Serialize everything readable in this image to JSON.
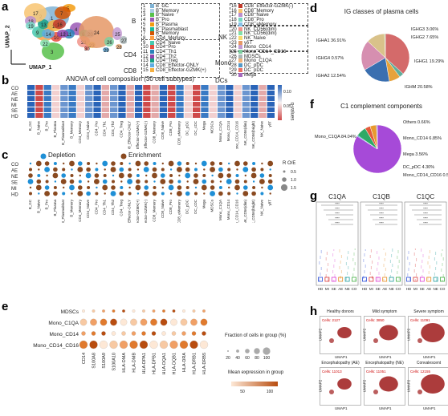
{
  "labels": {
    "a": "a",
    "b": "b",
    "c": "c",
    "d": "d",
    "e": "e",
    "f": "f",
    "g": "g",
    "h": "h"
  },
  "panel_a": {
    "xlabel": "UMAP_1",
    "ylabel": "UMAP_2",
    "groups": {
      "b": "B",
      "nk": "NK",
      "cd4": "CD4",
      "mono": "Mono",
      "dcs": "DCs",
      "cd8": "CD8"
    },
    "clusters": [
      {
        "n": "1",
        "name": "B_GC",
        "color": "#7fb3d5"
      },
      {
        "n": "2",
        "name": "B_Memory",
        "color": "#a9cce3"
      },
      {
        "n": "3",
        "name": "B_Naive",
        "color": "#58c14b"
      },
      {
        "n": "4",
        "name": "B_Pro",
        "color": "#9b59b6"
      },
      {
        "n": "5",
        "name": "B_Plasma",
        "color": "#f39c12"
      },
      {
        "n": "6",
        "name": "B_Plasmablast",
        "color": "#1abc9c"
      },
      {
        "n": "7",
        "name": "B_Memory",
        "color": "#d35400"
      },
      {
        "n": "8",
        "name": "CD4_Memory",
        "color": "#ff9f43"
      },
      {
        "n": "9",
        "name": "CD4_Naive",
        "color": "#48c9b0"
      },
      {
        "n": "10",
        "name": "CD4_Pro",
        "color": "#e74c3c"
      },
      {
        "n": "11",
        "name": "CD4_Th1",
        "color": "#2980b9"
      },
      {
        "n": "12",
        "name": "CD4_Th2",
        "color": "#8e44ad"
      },
      {
        "n": "13",
        "name": "CD4_Treg",
        "color": "#16a085"
      },
      {
        "n": "14",
        "name": "CD8_Effector-ONLY",
        "color": "#5dade2"
      },
      {
        "n": "15",
        "name": "CD8_Effector-GZMK(+)",
        "color": "#f5b041"
      },
      {
        "n": "16",
        "name": "CD8_Effector-GZMK(-)",
        "color": "#c0392b"
      },
      {
        "n": "16",
        "name": "CD8_Memory",
        "color": "#f8c471"
      },
      {
        "n": "17",
        "name": "CD8_Naive",
        "color": "#bb8fce"
      },
      {
        "n": "18",
        "name": "CD8_Pro",
        "color": "#76d7c4"
      },
      {
        "n": "19",
        "name": "CD8_eMemory",
        "color": "#85c1e9"
      },
      {
        "n": "20",
        "name": "NK_CD56(dim)",
        "color": "#f1948a"
      },
      {
        "n": "21",
        "name": "NK_CD56(dim)",
        "color": "#82e0aa"
      },
      {
        "n": "22",
        "name": "NK_Naive",
        "color": "#f7dc6f"
      },
      {
        "n": "23",
        "name": "γδT",
        "color": "#e59866"
      },
      {
        "n": "24",
        "name": "Mono_CD14",
        "color": "#c39bd3"
      },
      {
        "n": "25",
        "name": "Mono_CD14_CD16",
        "color": "#7dcea0"
      },
      {
        "n": "26",
        "name": "MDSCs",
        "color": "#aab7b8"
      },
      {
        "n": "27",
        "name": "Mono_C1QA",
        "color": "#f0b27a"
      },
      {
        "n": "28",
        "name": "DC_pDC",
        "color": "#5499c7"
      },
      {
        "n": "29",
        "name": "DC_pDC",
        "color": "#ec7063"
      },
      {
        "n": "30",
        "name": "Mega",
        "color": "#a569bd"
      }
    ]
  },
  "panel_b": {
    "title": "ANOVA of cell composition (30 cell subtypes)",
    "rows": [
      "CO",
      "AE",
      "NE",
      "MI",
      "SE",
      "HD"
    ],
    "columns": [
      "B_GC",
      "B_Naive",
      "B_Pro",
      "B_Plasma",
      "B_Plasmablast",
      "B_Memory",
      "CD4_Memory",
      "CD4_Naive",
      "CD4_Pro",
      "CD4_Th1",
      "CD4_Th2",
      "CD4_Treg",
      "CD8_Effector-ONLY",
      "CD8_Effector-GZMK(+)",
      "CD8_Effector-GZMK(-)",
      "CD8_Memory",
      "CD8_Naive",
      "CD8_Pro",
      "CD8_eMemory",
      "DC_pDC",
      "DC_cDC",
      "Mega",
      "MDSCs",
      "Mono_C1QA",
      "Mono_CD14",
      "Mono_CD14_CD16",
      "NK_CD56(dim)",
      "NK_CD56(bright)",
      "NK_Naive",
      "γδT"
    ],
    "legend_title": "q-values",
    "legend_ticks": [
      "0.05",
      "0.10"
    ]
  },
  "panel_c": {
    "depletion": "Depletion",
    "enrichment": "Enrichment",
    "rows": [
      "CO",
      "AE",
      "NE",
      "SE",
      "MI",
      "HD"
    ],
    "size_title": "R O/E",
    "size_ticks": [
      "0.5",
      "1.0",
      "1.5"
    ]
  },
  "panel_d": {
    "title": "IG classes of plasma cells",
    "chart_data": {
      "type": "pie",
      "labels": [
        "IGHA1",
        "IGHG3",
        "IGHG2",
        "IGHG1",
        "IGHM",
        "IGHA2",
        "IGHG4"
      ],
      "values": [
        36.91,
        3.06,
        7.65,
        19.29,
        20.58,
        12.54,
        0.57
      ],
      "colors": [
        "#d46a6a",
        "#5fae9c",
        "#e6a23c",
        "#3a6fb0",
        "#d68fb0",
        "#d9c28a",
        "#8fbf6a"
      ]
    },
    "slice_labels": [
      "IGHA1 36.91%",
      "IGHG3 3.06%",
      "IGHG2 7.65%",
      "IGHG1 19.29%",
      "IGHM 20.58%",
      "IGHA2 12.54%",
      "IGHG4 0.57%"
    ]
  },
  "panel_e": {
    "rows": [
      "MDSCs",
      "Mono_C1QA",
      "Mono_CD14",
      "Mono_CD14_CD16"
    ],
    "genes": [
      "CD14",
      "S100A8",
      "S100A9",
      "S100A10",
      "HLA-DMA",
      "HLA-DMB",
      "HLA-DPA1",
      "HLA-DPB1",
      "HLA-DQA1",
      "HLA-DQB1",
      "HLA-DRA",
      "HLA-DRB1",
      "HLA-DRB5"
    ],
    "size_title": "Fraction of cells in group (%)",
    "size_ticks": [
      "20",
      "40",
      "60",
      "80",
      "100"
    ],
    "color_title": "Mean expression in group",
    "color_ticks": [
      "50",
      "100"
    ]
  },
  "panel_f": {
    "title": "C1 complement components",
    "chart_data": {
      "type": "pie",
      "labels": [
        "Mono_C1QA",
        "Others",
        "Mono_CD14",
        "Mega",
        "DC_pDC",
        "Mono_CD14_CD16"
      ],
      "values": [
        84.04,
        0.66,
        6.85,
        3.56,
        4.3,
        0.59
      ],
      "colors": [
        "#a64ad8",
        "#3a8fd6",
        "#2eaa66",
        "#e25a3a",
        "#e89a2e",
        "#5f6bd0"
      ]
    },
    "slice_labels": [
      "Mono_C1QA 84.04%",
      "Others 0.66%",
      "Mono_CD14 6.85%",
      "Mega 3.56%",
      "DC_pDC 4.30%",
      "Mono_CD14_CD16 0.59%"
    ]
  },
  "panel_g": {
    "panels": [
      {
        "title": "C1QA"
      },
      {
        "title": "C1QB"
      },
      {
        "title": "C1QC"
      }
    ],
    "groups": [
      "HD",
      "MI",
      "SE",
      "AE",
      "NE",
      "CO"
    ],
    "group_colors": [
      "#2a4dd8",
      "#d93a3a",
      "#d93ad1",
      "#e58a1f",
      "#1f9c9c",
      "#3fae3f"
    ],
    "sig": "****"
  },
  "panel_h": {
    "tiles": [
      {
        "title": "Healthy donors",
        "cells": "Cells: 2127"
      },
      {
        "title": "Mild symptom",
        "cells": "Cells: 3850"
      },
      {
        "title": "Severe symptom",
        "cells": "Cells: 11091"
      },
      {
        "title": "Encephalopathy (AE)",
        "cells": "Cells: 11013"
      },
      {
        "title": "Encephalopathy (NE)",
        "cells": "Cells: 11051"
      },
      {
        "title": "Convalescent",
        "cells": "Cells: 12155"
      }
    ],
    "xlabel": "UMAP1",
    "ylabel": "UMAP2"
  }
}
